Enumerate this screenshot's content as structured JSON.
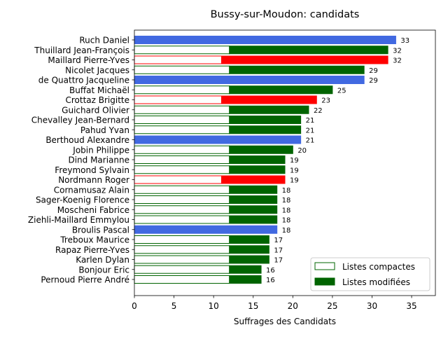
{
  "chart_data": {
    "type": "bar",
    "orientation": "horizontal",
    "title": "Bussy-sur-Moudon: candidats",
    "xlabel": "Suffrages des Candidats",
    "ylabel": "",
    "xlim": [
      0,
      38
    ],
    "xticks": [
      0,
      5,
      10,
      15,
      20,
      25,
      30,
      35
    ],
    "grid": false,
    "legend_position": "lower-right",
    "legend": [
      {
        "label": "Listes compactes",
        "style": "outline",
        "color": "#006400"
      },
      {
        "label": "Listes modifiées",
        "style": "filled",
        "color": "#006400"
      }
    ],
    "colors": {
      "green": "#006400",
      "red": "#ff0000",
      "blue": "#4169e1"
    },
    "candidates": [
      {
        "name": "Ruch Daniel",
        "compact": 0,
        "total": 33,
        "color": "blue"
      },
      {
        "name": "Thuillard Jean-François",
        "compact": 12,
        "total": 32,
        "color": "green"
      },
      {
        "name": "Maillard Pierre-Yves",
        "compact": 11,
        "total": 32,
        "color": "red"
      },
      {
        "name": "Nicolet Jacques",
        "compact": 12,
        "total": 29,
        "color": "green"
      },
      {
        "name": "de Quattro Jacqueline",
        "compact": 0,
        "total": 29,
        "color": "blue"
      },
      {
        "name": "Buffat Michaël",
        "compact": 12,
        "total": 25,
        "color": "green"
      },
      {
        "name": "Crottaz Brigitte",
        "compact": 11,
        "total": 23,
        "color": "red"
      },
      {
        "name": "Guichard Olivier",
        "compact": 12,
        "total": 22,
        "color": "green"
      },
      {
        "name": "Chevalley Jean-Bernard",
        "compact": 12,
        "total": 21,
        "color": "green"
      },
      {
        "name": "Pahud Yvan",
        "compact": 12,
        "total": 21,
        "color": "green"
      },
      {
        "name": "Berthoud Alexandre",
        "compact": 0,
        "total": 21,
        "color": "blue"
      },
      {
        "name": "Jobin Philippe",
        "compact": 12,
        "total": 20,
        "color": "green"
      },
      {
        "name": "Dind Marianne",
        "compact": 12,
        "total": 19,
        "color": "green"
      },
      {
        "name": "Freymond Sylvain",
        "compact": 12,
        "total": 19,
        "color": "green"
      },
      {
        "name": "Nordmann Roger",
        "compact": 11,
        "total": 19,
        "color": "red"
      },
      {
        "name": "Cornamusaz Alain",
        "compact": 12,
        "total": 18,
        "color": "green"
      },
      {
        "name": "Sager-Koenig Florence",
        "compact": 12,
        "total": 18,
        "color": "green"
      },
      {
        "name": "Moscheni Fabrice",
        "compact": 12,
        "total": 18,
        "color": "green"
      },
      {
        "name": "Ziehli-Maillard Emmylou",
        "compact": 12,
        "total": 18,
        "color": "green"
      },
      {
        "name": "Broulis Pascal",
        "compact": 0,
        "total": 18,
        "color": "blue"
      },
      {
        "name": "Treboux Maurice",
        "compact": 12,
        "total": 17,
        "color": "green"
      },
      {
        "name": "Rapaz Pierre-Yves",
        "compact": 12,
        "total": 17,
        "color": "green"
      },
      {
        "name": "Karlen Dylan",
        "compact": 12,
        "total": 17,
        "color": "green"
      },
      {
        "name": "Bonjour Eric",
        "compact": 12,
        "total": 16,
        "color": "green"
      },
      {
        "name": "Pernoud Pierre André",
        "compact": 12,
        "total": 16,
        "color": "green"
      }
    ]
  }
}
